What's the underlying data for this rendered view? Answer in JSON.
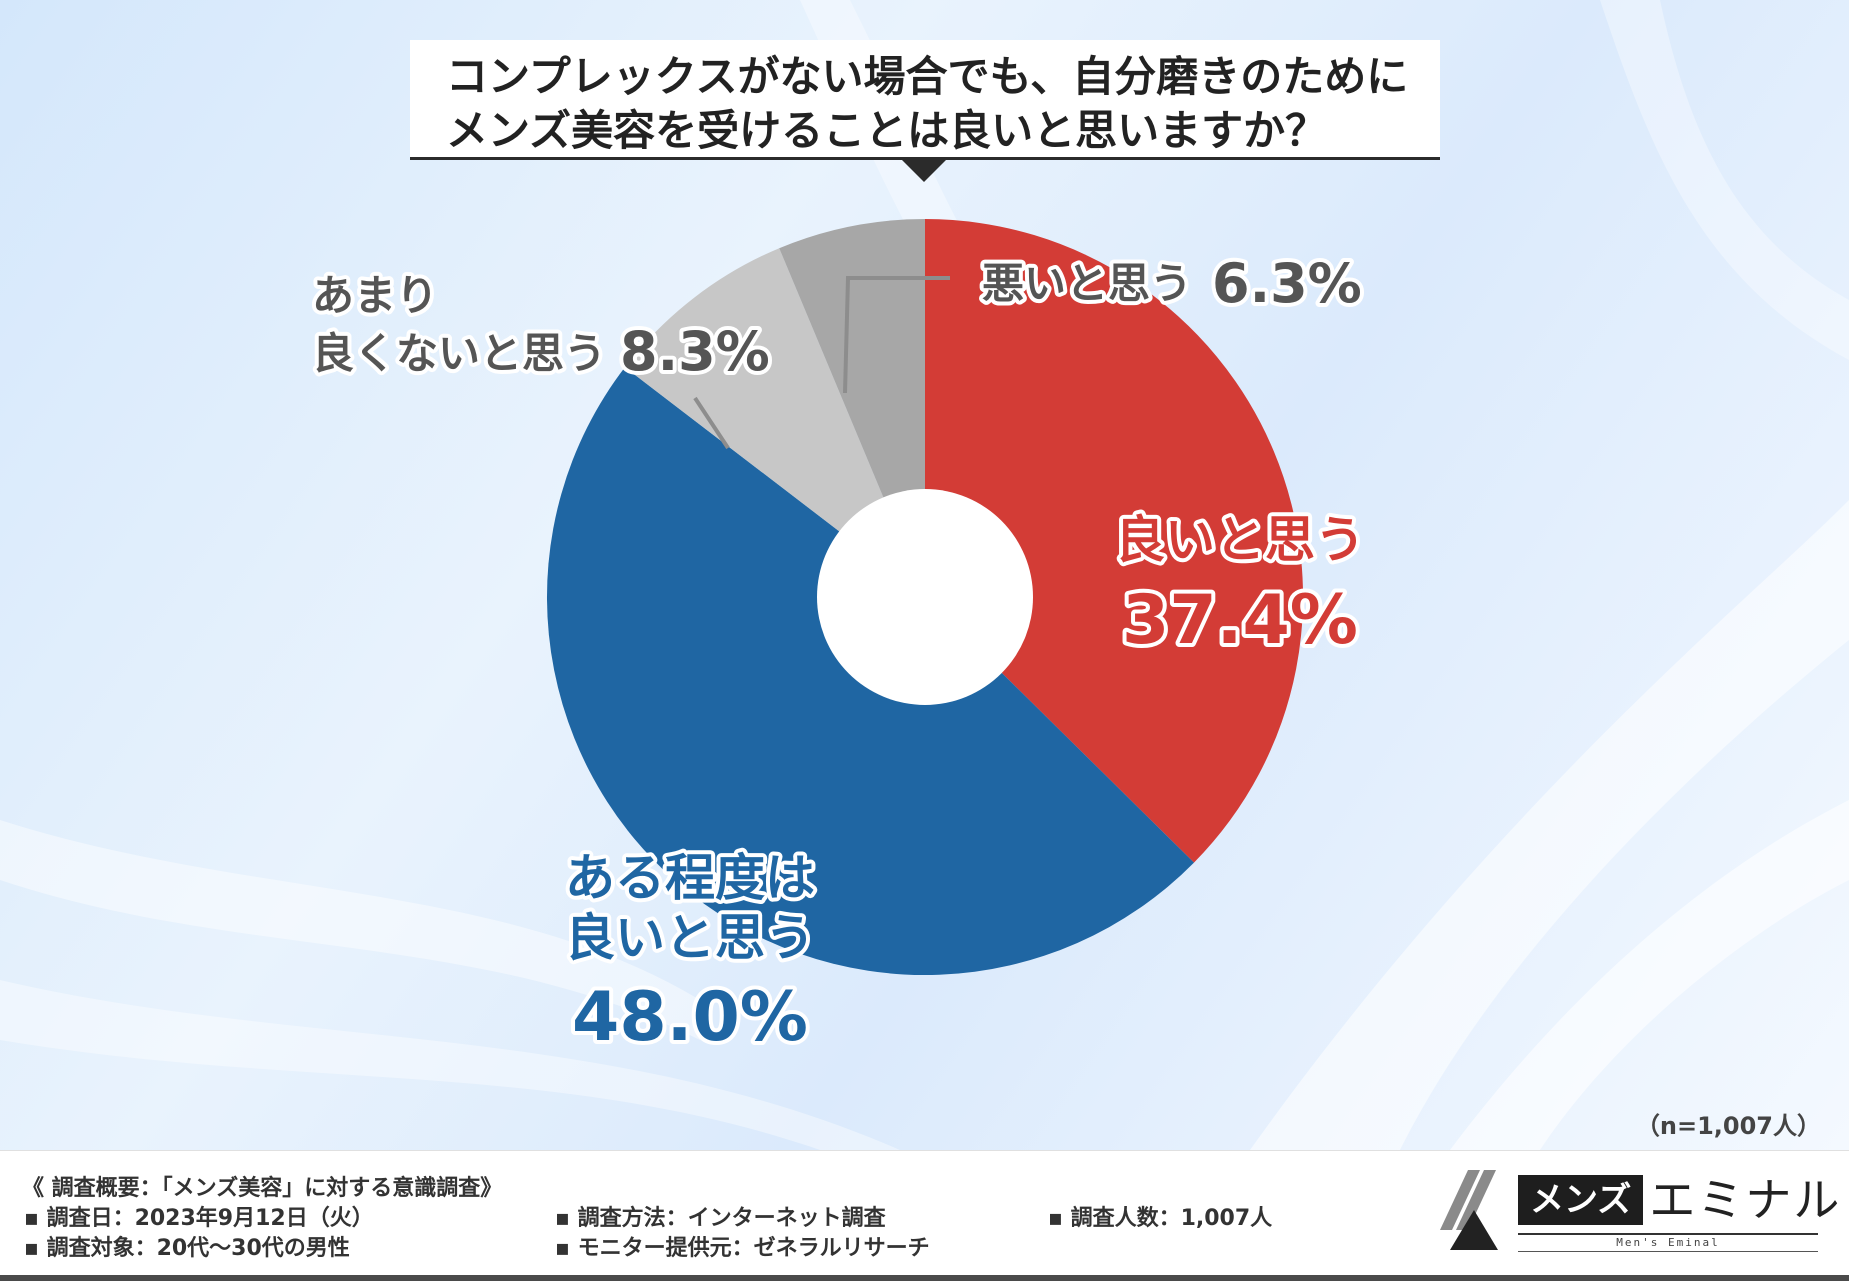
{
  "title": {
    "line1": "コンプレックスがない場合でも、自分磨きのために",
    "line2": "メンズ美容を受けることは良いと思いますか？"
  },
  "chart_data": {
    "type": "pie",
    "donut": true,
    "categories": [
      "良いと思う",
      "ある程度は良いと思う",
      "あまり良くないと思う",
      "悪いと思う"
    ],
    "values": [
      37.4,
      48.0,
      8.3,
      6.3
    ],
    "value_labels": [
      "37.4%",
      "48.0%",
      "8.3%",
      "6.3%"
    ],
    "colors": [
      "#d33c36",
      "#1f66a3",
      "#c7c7c7",
      "#a7a7a7"
    ],
    "label_lines": [
      [
        "良いと思う"
      ],
      [
        "ある程度は",
        "良いと思う"
      ],
      [
        "あまり",
        "良くないと思う"
      ],
      [
        "悪いと思う"
      ]
    ]
  },
  "sample_note": "（n=1,007人）",
  "footer": {
    "heading": "《 調査概要：「メンズ美容」に対する意識調査》",
    "items": [
      "▪ 調査日：2023年9月12日（火）",
      "▪ 調査対象：20代〜30代の男性",
      "▪ 調査方法：インターネット調査",
      "▪ モニター提供元：ゼネラルリサーチ",
      "▪ 調査人数：1,007人"
    ]
  },
  "logo": {
    "box": "メンズ",
    "rest": "エミナル",
    "sub": "Men's Eminal"
  }
}
